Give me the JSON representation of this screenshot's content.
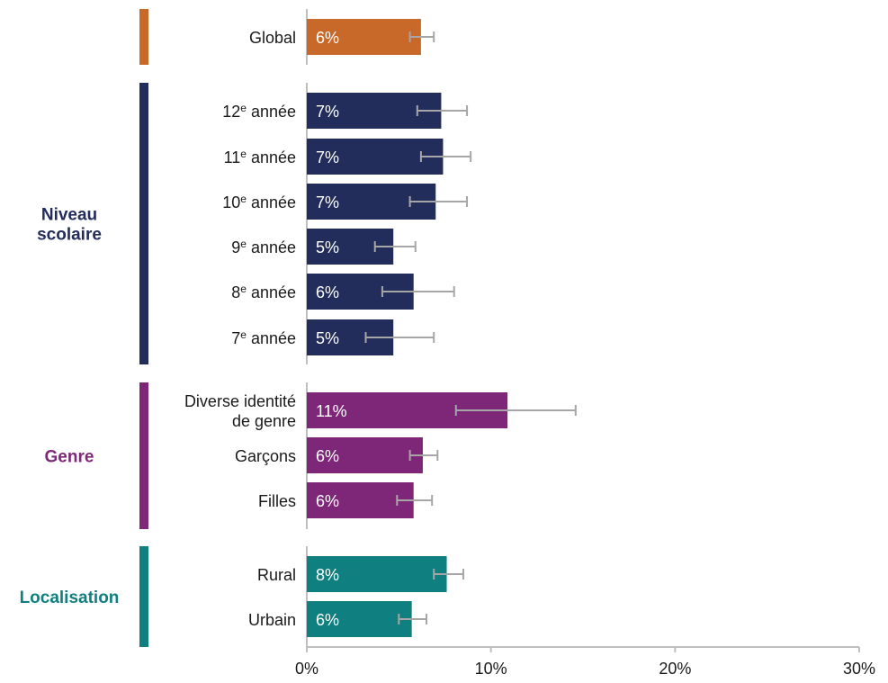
{
  "chart_data": {
    "type": "bar",
    "orientation": "horizontal",
    "xlim": [
      0,
      30
    ],
    "x_ticks": [
      "0%",
      "10%",
      "20%",
      "30%"
    ],
    "x_tick_values": [
      0,
      10,
      20,
      30
    ],
    "groups": [
      {
        "name": "",
        "color": "#C8692A",
        "rows": [
          {
            "label": "Global",
            "sup": "",
            "rest": "",
            "value": 6.2,
            "display": "6%",
            "ci_low": 5.6,
            "ci_high": 6.9
          }
        ]
      },
      {
        "name": "Niveau scolaire",
        "name_lines": [
          "Niveau",
          "scolaire"
        ],
        "color": "#232D5C",
        "rows": [
          {
            "label": "12",
            "sup": "e",
            "rest": " année",
            "value": 7.3,
            "display": "7%",
            "ci_low": 6.0,
            "ci_high": 8.7
          },
          {
            "label": "11",
            "sup": "e",
            "rest": " année",
            "value": 7.4,
            "display": "7%",
            "ci_low": 6.2,
            "ci_high": 8.9
          },
          {
            "label": "10",
            "sup": "e",
            "rest": " année",
            "value": 7.0,
            "display": "7%",
            "ci_low": 5.6,
            "ci_high": 8.7
          },
          {
            "label": "9",
            "sup": "e",
            "rest": " année",
            "value": 4.7,
            "display": "5%",
            "ci_low": 3.7,
            "ci_high": 5.9
          },
          {
            "label": "8",
            "sup": "e",
            "rest": " année",
            "value": 5.8,
            "display": "6%",
            "ci_low": 4.1,
            "ci_high": 8.0
          },
          {
            "label": "7",
            "sup": "e",
            "rest": " année",
            "value": 4.7,
            "display": "5%",
            "ci_low": 3.2,
            "ci_high": 6.9
          }
        ]
      },
      {
        "name": "Genre",
        "name_lines": [
          "Genre"
        ],
        "color": "#7E2779",
        "rows": [
          {
            "label": "Diverse identité",
            "label2": "de genre",
            "sup": "",
            "rest": "",
            "value": 10.9,
            "display": "11%",
            "ci_low": 8.1,
            "ci_high": 14.6
          },
          {
            "label": "Garçons",
            "sup": "",
            "rest": "",
            "value": 6.3,
            "display": "6%",
            "ci_low": 5.6,
            "ci_high": 7.1
          },
          {
            "label": "Filles",
            "sup": "",
            "rest": "",
            "value": 5.8,
            "display": "6%",
            "ci_low": 4.9,
            "ci_high": 6.8
          }
        ]
      },
      {
        "name": "Localisation",
        "name_lines": [
          "Localisation"
        ],
        "color": "#107F80",
        "rows": [
          {
            "label": "Rural",
            "sup": "",
            "rest": "",
            "value": 7.6,
            "display": "8%",
            "ci_low": 6.9,
            "ci_high": 8.5
          },
          {
            "label": "Urbain",
            "sup": "",
            "rest": "",
            "value": 5.7,
            "display": "6%",
            "ci_low": 5.0,
            "ci_high": 6.5
          }
        ]
      }
    ],
    "error_bar_color": "#A6A6A6",
    "axis_color": "#BFBFBF",
    "grid": false,
    "legend": "none"
  }
}
